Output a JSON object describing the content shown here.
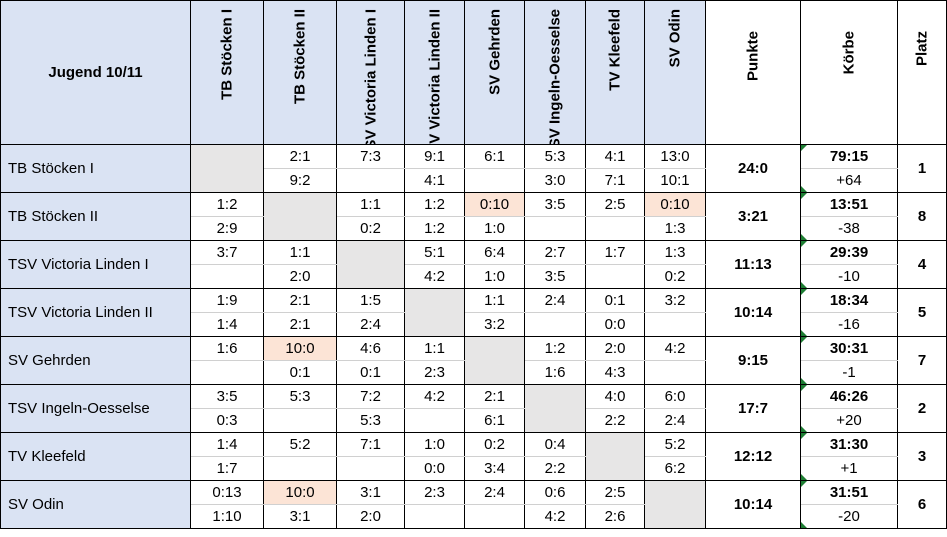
{
  "title": "Jugend 10/11",
  "columns": [
    "TB Stöcken I",
    "TB Stöcken II",
    "TSV Victoria Linden I",
    "TSV Victoria Linden II",
    "SV Gehrden",
    "TSV Ingeln-Oesselse",
    "TV Kleefeld",
    "SV Odin"
  ],
  "summary_headers": {
    "punkte": "Punkte",
    "koerbe": "Körbe",
    "platz": "Platz"
  },
  "rows": [
    {
      "team": "TB Stöcken I",
      "results": [
        [
          "",
          ""
        ],
        [
          "2:1",
          "9:2"
        ],
        [
          "7:3",
          ""
        ],
        [
          "9:1",
          "4:1"
        ],
        [
          "6:1",
          ""
        ],
        [
          "5:3",
          "3:0"
        ],
        [
          "4:1",
          "7:1"
        ],
        [
          "13:0",
          "10:1"
        ]
      ],
      "punkte": "24:0",
      "koerbe": "79:15",
      "diff": "+64",
      "platz": "1"
    },
    {
      "team": "TB Stöcken II",
      "results": [
        [
          "1:2",
          "2:9"
        ],
        [
          "",
          ""
        ],
        [
          "1:1",
          "0:2"
        ],
        [
          "1:2",
          "1:2"
        ],
        [
          "0:10",
          "1:0"
        ],
        [
          "3:5",
          ""
        ],
        [
          "2:5",
          ""
        ],
        [
          "0:10",
          "1:3"
        ]
      ],
      "punkte": "3:21",
      "koerbe": "13:51",
      "diff": "-38",
      "platz": "8"
    },
    {
      "team": "TSV Victoria Linden I",
      "results": [
        [
          "3:7",
          ""
        ],
        [
          "1:1",
          "2:0"
        ],
        [
          "",
          ""
        ],
        [
          "5:1",
          "4:2"
        ],
        [
          "6:4",
          "1:0"
        ],
        [
          "2:7",
          "3:5"
        ],
        [
          "1:7",
          ""
        ],
        [
          "1:3",
          "0:2"
        ]
      ],
      "punkte": "11:13",
      "koerbe": "29:39",
      "diff": "-10",
      "platz": "4"
    },
    {
      "team": "TSV Victoria Linden II",
      "results": [
        [
          "1:9",
          "1:4"
        ],
        [
          "2:1",
          "2:1"
        ],
        [
          "1:5",
          "2:4"
        ],
        [
          "",
          ""
        ],
        [
          "1:1",
          "3:2"
        ],
        [
          "2:4",
          ""
        ],
        [
          "0:1",
          "0:0"
        ],
        [
          "3:2",
          ""
        ]
      ],
      "punkte": "10:14",
      "koerbe": "18:34",
      "diff": "-16",
      "platz": "5"
    },
    {
      "team": "SV Gehrden",
      "results": [
        [
          "1:6",
          ""
        ],
        [
          "10:0",
          "0:1"
        ],
        [
          "4:6",
          "0:1"
        ],
        [
          "1:1",
          "2:3"
        ],
        [
          "",
          ""
        ],
        [
          "1:2",
          "1:6"
        ],
        [
          "2:0",
          "4:3"
        ],
        [
          "4:2",
          ""
        ]
      ],
      "punkte": "9:15",
      "koerbe": "30:31",
      "diff": "-1",
      "platz": "7"
    },
    {
      "team": "TSV Ingeln-Oesselse",
      "results": [
        [
          "3:5",
          "0:3"
        ],
        [
          "5:3",
          ""
        ],
        [
          "7:2",
          "5:3"
        ],
        [
          "4:2",
          ""
        ],
        [
          "2:1",
          "6:1"
        ],
        [
          "",
          ""
        ],
        [
          "4:0",
          "2:2"
        ],
        [
          "6:0",
          "2:4"
        ]
      ],
      "punkte": "17:7",
      "koerbe": "46:26",
      "diff": "+20",
      "platz": "2"
    },
    {
      "team": "TV Kleefeld",
      "results": [
        [
          "1:4",
          "1:7"
        ],
        [
          "5:2",
          ""
        ],
        [
          "7:1",
          ""
        ],
        [
          "1:0",
          "0:0"
        ],
        [
          "0:2",
          "3:4"
        ],
        [
          "0:4",
          "2:2"
        ],
        [
          "",
          ""
        ],
        [
          "5:2",
          "6:2"
        ]
      ],
      "punkte": "12:12",
      "koerbe": "31:30",
      "diff": "+1",
      "platz": "3"
    },
    {
      "team": "SV Odin",
      "results": [
        [
          "0:13",
          "1:10"
        ],
        [
          "10:0",
          "3:1"
        ],
        [
          "3:1",
          "2:0"
        ],
        [
          "2:3",
          ""
        ],
        [
          "2:4",
          ""
        ],
        [
          "0:6",
          "4:2"
        ],
        [
          "2:5",
          "2:6"
        ],
        [
          "",
          ""
        ]
      ],
      "punkte": "10:14",
      "koerbe": "31:51",
      "diff": "-20",
      "platz": "6"
    }
  ]
}
